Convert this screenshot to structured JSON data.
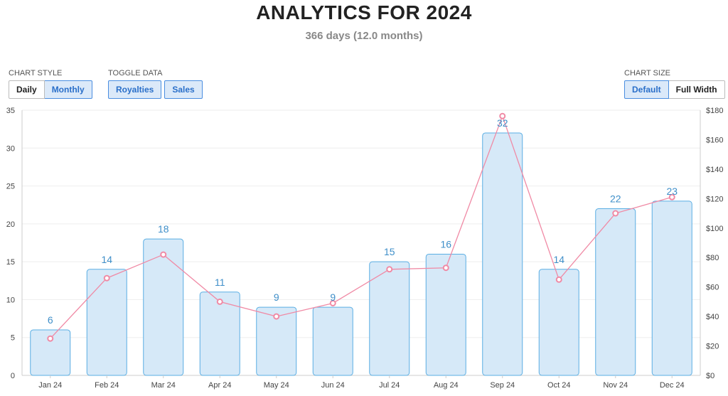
{
  "header": {
    "title": "ANALYTICS FOR 2024",
    "subtitle": "366 days (12.0 months)"
  },
  "controls": {
    "chart_style": {
      "label": "CHART STYLE",
      "options": [
        "Daily",
        "Monthly"
      ],
      "selected": "Monthly"
    },
    "toggle_data": {
      "label": "TOGGLE DATA",
      "options": [
        "Royalties",
        "Sales"
      ]
    },
    "chart_size": {
      "label": "CHART SIZE",
      "options": [
        "Default",
        "Full Width"
      ],
      "selected": "Default"
    }
  },
  "colors": {
    "bar_fill": "#d6e9f8",
    "bar_stroke": "#5aaee3",
    "bar_label": "#3f8fc9",
    "line": "#f08aa5",
    "grid": "#eeeeee"
  },
  "chart_data": {
    "type": "bar",
    "categories": [
      "Jan 24",
      "Feb 24",
      "Mar 24",
      "Apr 24",
      "May 24",
      "Jun 24",
      "Jul 24",
      "Aug 24",
      "Sep 24",
      "Oct 24",
      "Nov 24",
      "Dec 24"
    ],
    "series": [
      {
        "values": [
          6,
          14,
          18,
          11,
          9,
          9,
          15,
          16,
          32,
          14,
          22,
          23
        ],
        "axis": "left",
        "type": "bar"
      },
      {
        "values": [
          25,
          66,
          82,
          50,
          40,
          49,
          72,
          73,
          176,
          65,
          110,
          121
        ],
        "axis": "right",
        "type": "line"
      }
    ],
    "y_left": {
      "min": 0,
      "max": 35,
      "ticks": [
        "0",
        "5",
        "10",
        "15",
        "20",
        "25",
        "30",
        "35"
      ]
    },
    "y_right": {
      "min": 0,
      "max": 180,
      "ticks": [
        "$0",
        "$20",
        "$40",
        "$60",
        "$80",
        "$100",
        "$120",
        "$140",
        "$160",
        "$180"
      ]
    },
    "grid": true
  }
}
